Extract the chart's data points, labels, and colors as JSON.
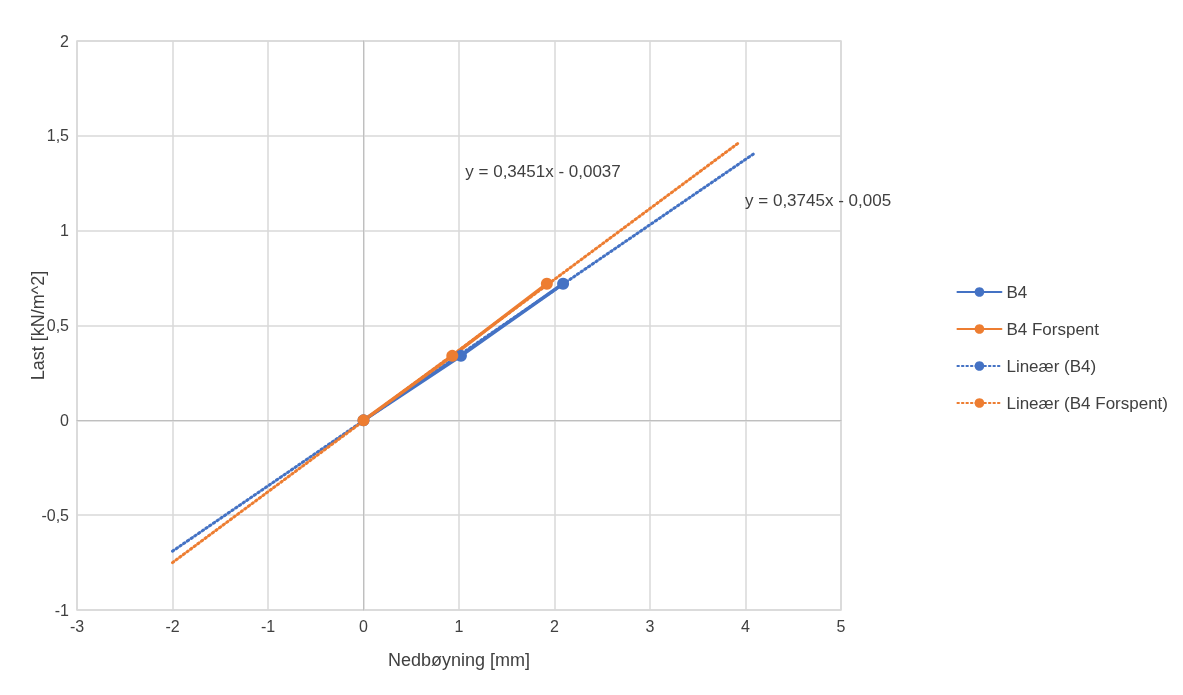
{
  "chart_data": {
    "type": "line",
    "xlabel": "Nedbøyning [mm]",
    "ylabel": "Last [kN/m^2]",
    "xlim": [
      -3,
      5
    ],
    "xticks": [
      -3,
      -2,
      -1,
      0,
      1,
      2,
      3,
      4,
      5
    ],
    "ylim": [
      -1,
      2
    ],
    "yticks": [
      {
        "value": -1,
        "label": "-1"
      },
      {
        "value": -0.5,
        "label": "-0,5"
      },
      {
        "value": 0,
        "label": "0"
      },
      {
        "value": 0.5,
        "label": "0,5"
      },
      {
        "value": 1,
        "label": "1"
      },
      {
        "value": 1.5,
        "label": "1,5"
      },
      {
        "value": 2,
        "label": "2"
      }
    ],
    "grid": true,
    "legend": "right",
    "series": [
      {
        "name": "B4",
        "color": "#4472c4",
        "x": [
          0,
          1.02,
          2.09
        ],
        "values": [
          0,
          0.34,
          0.72
        ],
        "marker": "circle",
        "line_style": "solid"
      },
      {
        "name": "B4 Forspent",
        "color": "#ed7d31",
        "x": [
          0,
          0.93,
          1.92
        ],
        "values": [
          0,
          0.34,
          0.72
        ],
        "marker": "circle",
        "line_style": "solid"
      },
      {
        "name": "Lineær (B4)",
        "color": "#4472c4",
        "x": [
          -2,
          4.1
        ],
        "values": [
          -0.69,
          1.41
        ],
        "marker": "none",
        "line_style": "dotted"
      },
      {
        "name": "Lineær (B4 Forspent)",
        "color": "#ed7d31",
        "x": [
          -2,
          3.92
        ],
        "values": [
          -0.75,
          1.46
        ],
        "marker": "none",
        "line_style": "dotted"
      }
    ],
    "annotations": [
      "y = 0,3451x - 0,0037",
      "y = 0,3745x - 0,005"
    ]
  }
}
